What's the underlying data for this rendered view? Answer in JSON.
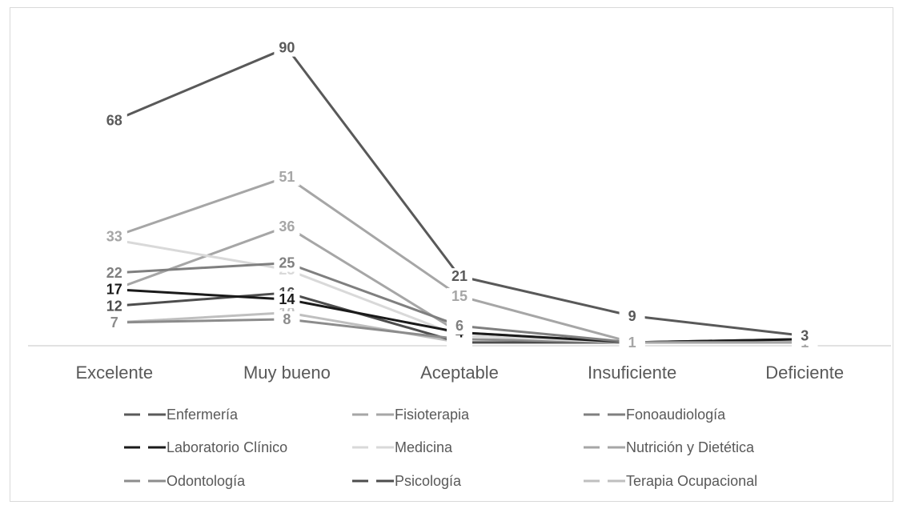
{
  "chart_data": {
    "type": "line",
    "categories": [
      "Excelente",
      "Muy bueno",
      "Aceptable",
      "Insuficiente",
      "Deficiente"
    ],
    "ylim": [
      0,
      95
    ],
    "grid": false,
    "legend_position": "bottom",
    "series": [
      {
        "name": "Enfermería",
        "values": [
          68,
          90,
          21,
          9,
          3
        ],
        "color": "#595959"
      },
      {
        "name": "Fisioterapia",
        "values": [
          33,
          51,
          15,
          1,
          1
        ],
        "color": "#a6a6a6"
      },
      {
        "name": "Fonoaudiología",
        "values": [
          22,
          25,
          6,
          1,
          1
        ],
        "color": "#7f7f7f"
      },
      {
        "name": "Laboratorio Clínico",
        "values": [
          17,
          14,
          4,
          1,
          2
        ],
        "color": "#1a1a1a"
      },
      {
        "name": "Medicina",
        "values": [
          32,
          23,
          3,
          1,
          1
        ],
        "color": "#d9d9d9"
      },
      {
        "name": "Nutrición y Dietética",
        "values": [
          17,
          36,
          4,
          1,
          1
        ],
        "color": "#a6a6a6"
      },
      {
        "name": "Odontología",
        "values": [
          7,
          8,
          2,
          1,
          1
        ],
        "color": "#8c8c8c"
      },
      {
        "name": "Psicología",
        "values": [
          12,
          16,
          1,
          1,
          2
        ],
        "color": "#4d4d4d"
      },
      {
        "name": "Terapia Ocupacional",
        "values": [
          7,
          10,
          1,
          1,
          1
        ],
        "color": "#bfbfbf"
      }
    ]
  }
}
